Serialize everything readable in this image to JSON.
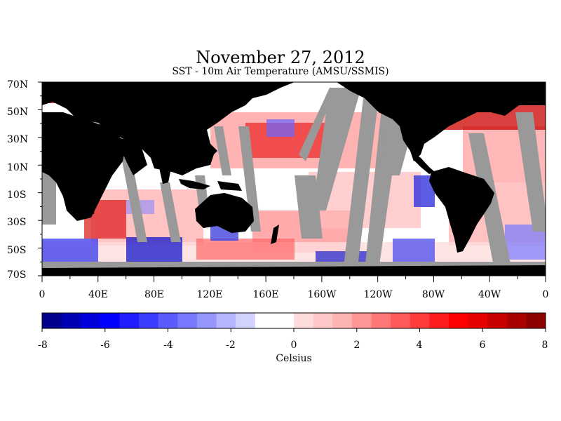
{
  "title": "November 27, 2012",
  "subtitle": "SST - 10m Air Temperature (AMSU/SSMIS)",
  "lat_labels": [
    "70N",
    "50N",
    "30N",
    "10N",
    "10S",
    "30S",
    "50S",
    "70S"
  ],
  "lon_labels": [
    "0",
    "40E",
    "80E",
    "120E",
    "160E",
    "160W",
    "120W",
    "80W",
    "40W",
    "0"
  ],
  "colorbar": {
    "ticks": [
      "-8",
      "-6",
      "-4",
      "-2",
      "0",
      "2",
      "4",
      "6",
      "8"
    ],
    "label": "Celsius",
    "range": [
      -8,
      8
    ],
    "colors": [
      "#00008c",
      "#0000b4",
      "#0000dc",
      "#0000ff",
      "#1e1eff",
      "#3c3cff",
      "#5a5aff",
      "#7878ff",
      "#9696ff",
      "#b4b4ff",
      "#d2d2ff",
      "#ffffff",
      "#ffffff",
      "#ffdcdc",
      "#ffc8c8",
      "#ffb4b4",
      "#ff9696",
      "#ff7878",
      "#ff5a5a",
      "#ff3c3c",
      "#ff1e1e",
      "#ff0000",
      "#e60000",
      "#c80000",
      "#aa0000",
      "#8c0000"
    ]
  },
  "colors": {
    "land": "#000000",
    "no_data": "#999999"
  }
}
